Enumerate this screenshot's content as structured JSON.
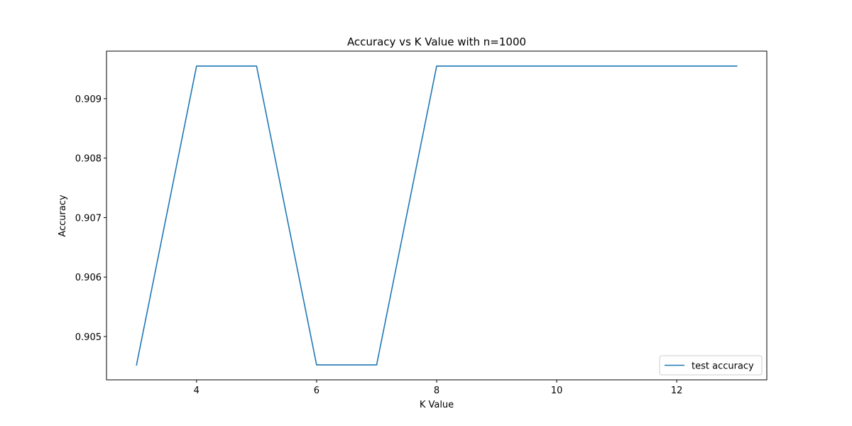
{
  "chart_data": {
    "type": "line",
    "title": "Accuracy vs K Value with n=1000",
    "xlabel": "K Value",
    "ylabel": "Accuracy",
    "x": [
      3,
      4,
      5,
      6,
      7,
      8,
      9,
      10,
      11,
      12,
      13
    ],
    "series": [
      {
        "name": "test accuracy",
        "color": "#1f77b4",
        "values": [
          0.904523,
          0.909548,
          0.909548,
          0.904523,
          0.904523,
          0.909548,
          0.909548,
          0.909548,
          0.909548,
          0.909548,
          0.909548
        ]
      }
    ],
    "xlim": [
      2.5,
      13.5
    ],
    "ylim": [
      0.904272,
      0.909799
    ],
    "xticks": [
      4,
      6,
      8,
      10,
      12
    ],
    "xtick_labels": [
      "4",
      "6",
      "8",
      "10",
      "12"
    ],
    "yticks": [
      0.905,
      0.906,
      0.907,
      0.908,
      0.909
    ],
    "ytick_labels": [
      "0.905",
      "0.906",
      "0.907",
      "0.908",
      "0.909"
    ],
    "grid": false,
    "legend_position": "lower-right"
  }
}
